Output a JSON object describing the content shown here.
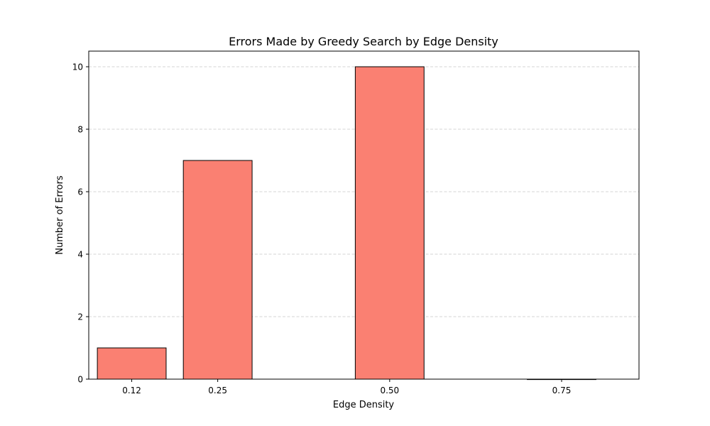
{
  "chart_data": {
    "type": "bar",
    "title": "Errors Made by Greedy Search by Edge Density",
    "xlabel": "Edge Density",
    "ylabel": "Number of Errors",
    "x": [
      0.125,
      0.25,
      0.5,
      0.75
    ],
    "categories": [
      "0.12",
      "0.25",
      "0.50",
      "0.75"
    ],
    "values": [
      1,
      7,
      10,
      0
    ],
    "bar_width": 0.1,
    "xlim": [
      0.0625,
      0.8625
    ],
    "ylim": [
      0,
      10.5
    ],
    "yticks": [
      0,
      2,
      4,
      6,
      8,
      10
    ],
    "grid": "y-dashed",
    "colors": {
      "bar_fill": "#fa8072",
      "bar_edge": "#000000",
      "grid": "#c8c8c8",
      "axis": "#000000"
    }
  }
}
